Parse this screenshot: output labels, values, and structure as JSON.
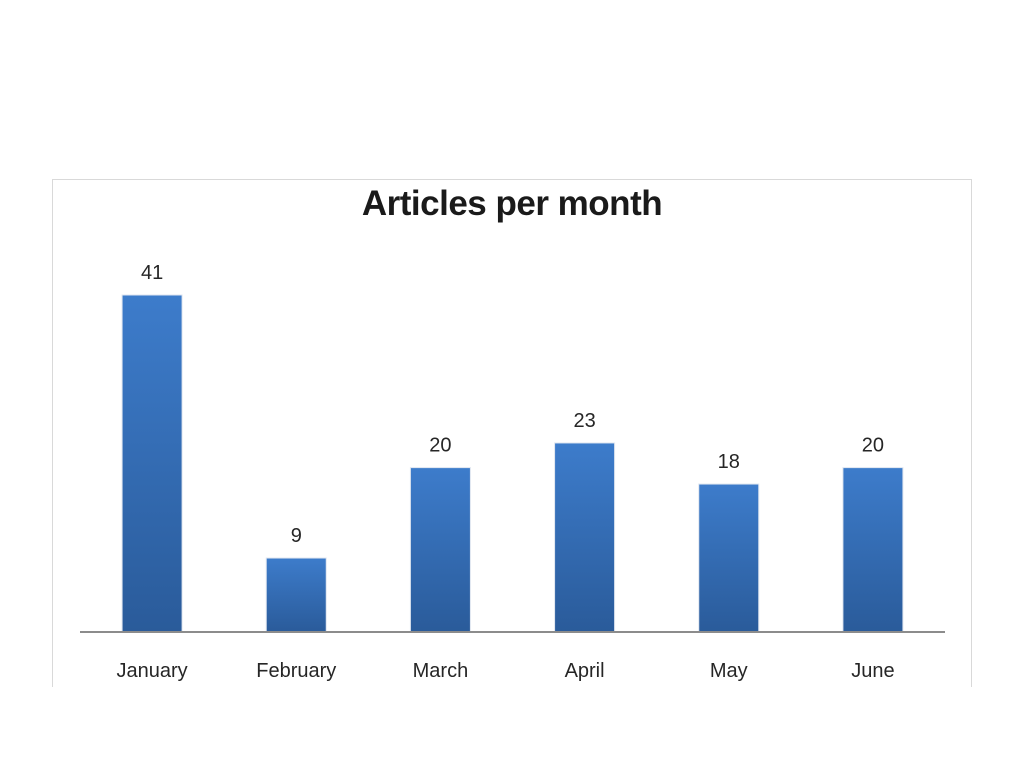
{
  "chart_data": {
    "type": "bar",
    "title": "Articles per month",
    "categories": [
      "January",
      "February",
      "March",
      "April",
      "May",
      "June"
    ],
    "values": [
      41,
      9,
      20,
      23,
      18,
      20
    ],
    "data_labels": [
      "41",
      "9",
      "20",
      "23",
      "18",
      "20"
    ],
    "xlabel": "",
    "ylabel": "",
    "ylim": [
      0,
      41
    ],
    "grid": false,
    "legend": "none",
    "colors": {
      "bar_top": "#3d7ccb",
      "bar_bottom": "#2a5b9a",
      "axis": "#8c8c8c"
    }
  }
}
